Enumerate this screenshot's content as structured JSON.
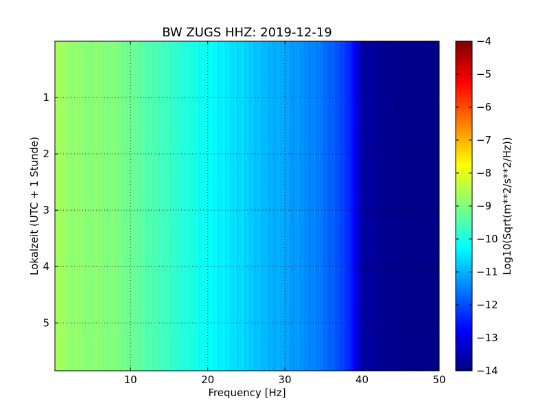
{
  "chart_data": {
    "type": "heatmap",
    "title": "BW ZUGS HHZ: 2019-12-19",
    "xlabel": "Frequency [Hz]",
    "ylabel": "Lokalzeit (UTC + 1 Stunde)",
    "xlim": [
      0.2,
      50
    ],
    "ylim": [
      0,
      5.85
    ],
    "y_inverted": true,
    "grid": true,
    "x_ticks": [
      10,
      20,
      30,
      40,
      50
    ],
    "y_ticks": [
      1,
      2,
      3,
      4,
      5
    ],
    "colormap": "jet",
    "colorbar": {
      "label": "Log10(Sqrt(m**2/s**2/Hz))",
      "range": [
        -14,
        -4
      ],
      "ticks": [
        -4,
        -5,
        -6,
        -7,
        -8,
        -9,
        -10,
        -11,
        -12,
        -13,
        -14
      ]
    },
    "spectrum_profile": {
      "frequency_hz": [
        0.2,
        2,
        5,
        8,
        10,
        12,
        15,
        18,
        20,
        22,
        24,
        26,
        28,
        30,
        32,
        34,
        36,
        38,
        39,
        40,
        42,
        45,
        50
      ],
      "log10_amplitude": [
        -8.6,
        -8.8,
        -8.9,
        -9.0,
        -9.2,
        -9.4,
        -9.7,
        -10.0,
        -10.2,
        -10.4,
        -10.6,
        -10.8,
        -11.0,
        -11.1,
        -11.3,
        -11.5,
        -11.8,
        -12.2,
        -12.8,
        -13.6,
        -13.8,
        -13.9,
        -13.9
      ]
    }
  }
}
